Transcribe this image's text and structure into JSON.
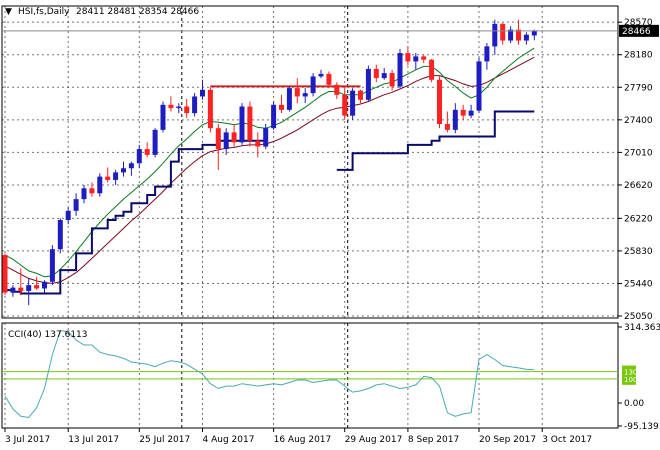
{
  "header": {
    "symbol_text": "HSI,fs,Daily",
    "ohlc_text": "28411 28481 28354 28466"
  },
  "sub_header": {
    "label": "CCI(40) 137.6113"
  },
  "colors": {
    "bull": "#1d1dc2",
    "bear": "#ff2222",
    "ma_fast": "#0a7a1e",
    "ma_slow": "#7a0a1a",
    "support": "#0a0a6a",
    "resistance": "#cc2222",
    "cci": "#4aa8b5",
    "cci_levels": "#7ac70e"
  },
  "chart_data": [
    {
      "type": "candlestick",
      "title": "HSI,fs,Daily",
      "ohlc_last": {
        "open": 28411,
        "high": 28481,
        "low": 28354,
        "close": 28466
      },
      "ylim": [
        25050,
        28620
      ],
      "yticks": [
        25050,
        25440,
        25830,
        26220,
        26620,
        27010,
        27400,
        27790,
        28180,
        28570
      ],
      "current_price_label": "28466",
      "x_tick_labels": [
        "3 Jul 2017",
        "13 Jul 2017",
        "25 Jul 2017",
        "4 Aug 2017",
        "16 Aug 2017",
        "29 Aug 2017",
        "8 Sep 2017",
        "20 Sep 2017",
        "3 Oct 2017"
      ],
      "x_tick_index": [
        0,
        8,
        17,
        25,
        34,
        43,
        51,
        60,
        68
      ],
      "candles": [
        [
          25780,
          25800,
          25300,
          25330
        ],
        [
          25330,
          25420,
          25280,
          25390
        ],
        [
          25390,
          25620,
          25300,
          25350
        ],
        [
          25350,
          25500,
          25180,
          25420
        ],
        [
          25420,
          25520,
          25360,
          25380
        ],
        [
          25380,
          25480,
          25330,
          25460
        ],
        [
          25460,
          25900,
          25420,
          25850
        ],
        [
          25850,
          26220,
          25800,
          26200
        ],
        [
          26200,
          26350,
          26150,
          26310
        ],
        [
          26310,
          26520,
          26250,
          26450
        ],
        [
          26450,
          26620,
          26400,
          26580
        ],
        [
          26580,
          26650,
          26480,
          26520
        ],
        [
          26520,
          26760,
          26480,
          26720
        ],
        [
          26720,
          26830,
          26650,
          26680
        ],
        [
          26680,
          26800,
          26620,
          26770
        ],
        [
          26770,
          26900,
          26720,
          26820
        ],
        [
          26820,
          26900,
          26730,
          26880
        ],
        [
          26880,
          27100,
          26820,
          27050
        ],
        [
          27050,
          27130,
          26950,
          26980
        ],
        [
          26980,
          27300,
          26950,
          27280
        ],
        [
          27280,
          27620,
          27250,
          27580
        ],
        [
          27580,
          27680,
          27500,
          27540
        ],
        [
          27540,
          27600,
          27480,
          27560
        ],
        [
          27560,
          27650,
          27420,
          27480
        ],
        [
          27480,
          27720,
          27440,
          27680
        ],
        [
          27680,
          27880,
          27640,
          27760
        ],
        [
          27760,
          27790,
          27250,
          27300
        ],
        [
          27300,
          27350,
          26800,
          27050
        ],
        [
          27050,
          27300,
          26980,
          27250
        ],
        [
          27250,
          27350,
          27080,
          27130
        ],
        [
          27130,
          27600,
          27100,
          27560
        ],
        [
          27560,
          27620,
          27080,
          27150
        ],
        [
          27150,
          27250,
          26950,
          27080
        ],
        [
          27080,
          27350,
          27050,
          27300
        ],
        [
          27300,
          27620,
          27280,
          27580
        ],
        [
          27580,
          27700,
          27480,
          27520
        ],
        [
          27520,
          27800,
          27500,
          27780
        ],
        [
          27780,
          27900,
          27600,
          27680
        ],
        [
          27680,
          27780,
          27600,
          27720
        ],
        [
          27720,
          27960,
          27680,
          27920
        ],
        [
          27920,
          28000,
          27900,
          27950
        ],
        [
          27950,
          27980,
          27780,
          27820
        ],
        [
          27820,
          27850,
          27650,
          27700
        ],
        [
          27700,
          27800,
          27400,
          27450
        ],
        [
          27450,
          27780,
          27400,
          27750
        ],
        [
          27750,
          27760,
          27600,
          27640
        ],
        [
          27640,
          28050,
          27620,
          28010
        ],
        [
          28010,
          28060,
          27850,
          27900
        ],
        [
          27900,
          28020,
          27880,
          27960
        ],
        [
          27960,
          28000,
          27750,
          27800
        ],
        [
          27800,
          28250,
          27780,
          28200
        ],
        [
          28200,
          28280,
          28050,
          28100
        ],
        [
          28100,
          28200,
          28000,
          28160
        ],
        [
          28160,
          28180,
          28080,
          28120
        ],
        [
          28120,
          28130,
          27850,
          27880
        ],
        [
          27880,
          27920,
          27300,
          27350
        ],
        [
          27350,
          27500,
          27250,
          27280
        ],
        [
          27280,
          27600,
          27240,
          27520
        ],
        [
          27520,
          27580,
          27400,
          27450
        ],
        [
          27450,
          27580,
          27420,
          27510
        ],
        [
          27510,
          28150,
          27480,
          28100
        ],
        [
          28100,
          28320,
          28000,
          28280
        ],
        [
          28280,
          28600,
          28180,
          28550
        ],
        [
          28550,
          28560,
          28300,
          28350
        ],
        [
          28350,
          28520,
          28320,
          28480
        ],
        [
          28480,
          28600,
          28300,
          28350
        ],
        [
          28350,
          28450,
          28300,
          28420
        ],
        [
          28411,
          28481,
          28354,
          28466
        ]
      ],
      "ma_fast_values": [
        25780,
        25730,
        25660,
        25590,
        25560,
        25520,
        25530,
        25610,
        25710,
        25820,
        25940,
        26060,
        26170,
        26270,
        26360,
        26450,
        26530,
        26610,
        26690,
        26780,
        26880,
        26990,
        27090,
        27170,
        27260,
        27340,
        27380,
        27370,
        27360,
        27340,
        27360,
        27350,
        27310,
        27300,
        27330,
        27370,
        27430,
        27490,
        27550,
        27620,
        27690,
        27740,
        27740,
        27700,
        27700,
        27700,
        27750,
        27790,
        27830,
        27850,
        27900,
        27950,
        28000,
        28040,
        28040,
        27970,
        27870,
        27800,
        27720,
        27660,
        27700,
        27790,
        27900,
        27980,
        28060,
        28140,
        28200,
        28260
      ],
      "ma_slow_values": [
        25650,
        25600,
        25550,
        25500,
        25470,
        25450,
        25440,
        25460,
        25510,
        25570,
        25650,
        25740,
        25830,
        25920,
        26010,
        26100,
        26190,
        26270,
        26360,
        26450,
        26540,
        26640,
        26730,
        26820,
        26900,
        26970,
        27020,
        27040,
        27060,
        27070,
        27090,
        27100,
        27100,
        27110,
        27140,
        27180,
        27230,
        27280,
        27340,
        27400,
        27460,
        27510,
        27540,
        27550,
        27570,
        27590,
        27620,
        27660,
        27700,
        27730,
        27770,
        27810,
        27860,
        27900,
        27930,
        27930,
        27900,
        27870,
        27830,
        27800,
        27810,
        27850,
        27900,
        27950,
        28000,
        28050,
        28100,
        28150
      ],
      "support_line": [
        25360,
        25340,
        25320,
        25320,
        25320,
        25320,
        25320,
        25600,
        25600,
        25800,
        25800,
        26100,
        26100,
        26200,
        26250,
        26300,
        26400,
        26400,
        26500,
        26600,
        26600,
        26900,
        27050,
        27050,
        27050,
        27100,
        27100,
        27150,
        27150,
        27150,
        27150,
        27150,
        27150,
        27150,
        null,
        null,
        null,
        null,
        null,
        null,
        null,
        null,
        26800,
        26800,
        27000,
        27000,
        27000,
        27000,
        27000,
        27000,
        27000,
        27100,
        27100,
        27100,
        27150,
        27200,
        27200,
        27200,
        27200,
        27200,
        27200,
        27200,
        27500,
        27500,
        27500,
        27500,
        27500,
        27500
      ],
      "resistance_line": [
        null,
        null,
        null,
        null,
        null,
        null,
        null,
        null,
        null,
        null,
        null,
        null,
        null,
        null,
        null,
        null,
        null,
        null,
        null,
        null,
        null,
        null,
        null,
        null,
        null,
        null,
        27800,
        27800,
        27800,
        27800,
        27800,
        27800,
        27800,
        27800,
        27800,
        27800,
        27800,
        27800,
        27800,
        27800,
        27800,
        27800,
        27800,
        27800,
        27800,
        27800,
        null,
        null,
        null,
        null,
        null,
        null,
        null,
        null,
        null,
        null,
        null,
        null,
        null,
        null,
        null,
        null,
        null,
        null,
        null,
        null,
        null,
        null
      ]
    },
    {
      "type": "line",
      "title": "CCI(40) 137.6113",
      "ylim": [
        -95.1391,
        314.3633
      ],
      "yticks": [
        314.3633,
        0.0,
        -95.1391
      ],
      "ytick_labels": [
        "314.3633",
        "0.00",
        "-95.1391"
      ],
      "levels": [
        130,
        100
      ],
      "level_labels": [
        "130",
        "100"
      ],
      "series": [
        {
          "name": "CCI(40)",
          "values": [
            30,
            -25,
            -55,
            -60,
            -20,
            60,
            200,
            300,
            295,
            260,
            240,
            240,
            210,
            200,
            195,
            185,
            170,
            165,
            160,
            150,
            165,
            175,
            170,
            160,
            140,
            120,
            80,
            60,
            70,
            70,
            80,
            75,
            70,
            75,
            80,
            75,
            85,
            95,
            95,
            85,
            90,
            95,
            95,
            70,
            45,
            50,
            60,
            75,
            80,
            70,
            60,
            65,
            75,
            110,
            105,
            70,
            -40,
            -55,
            -45,
            -40,
            180,
            200,
            180,
            155,
            150,
            145,
            140,
            137.6113
          ]
        }
      ]
    }
  ]
}
